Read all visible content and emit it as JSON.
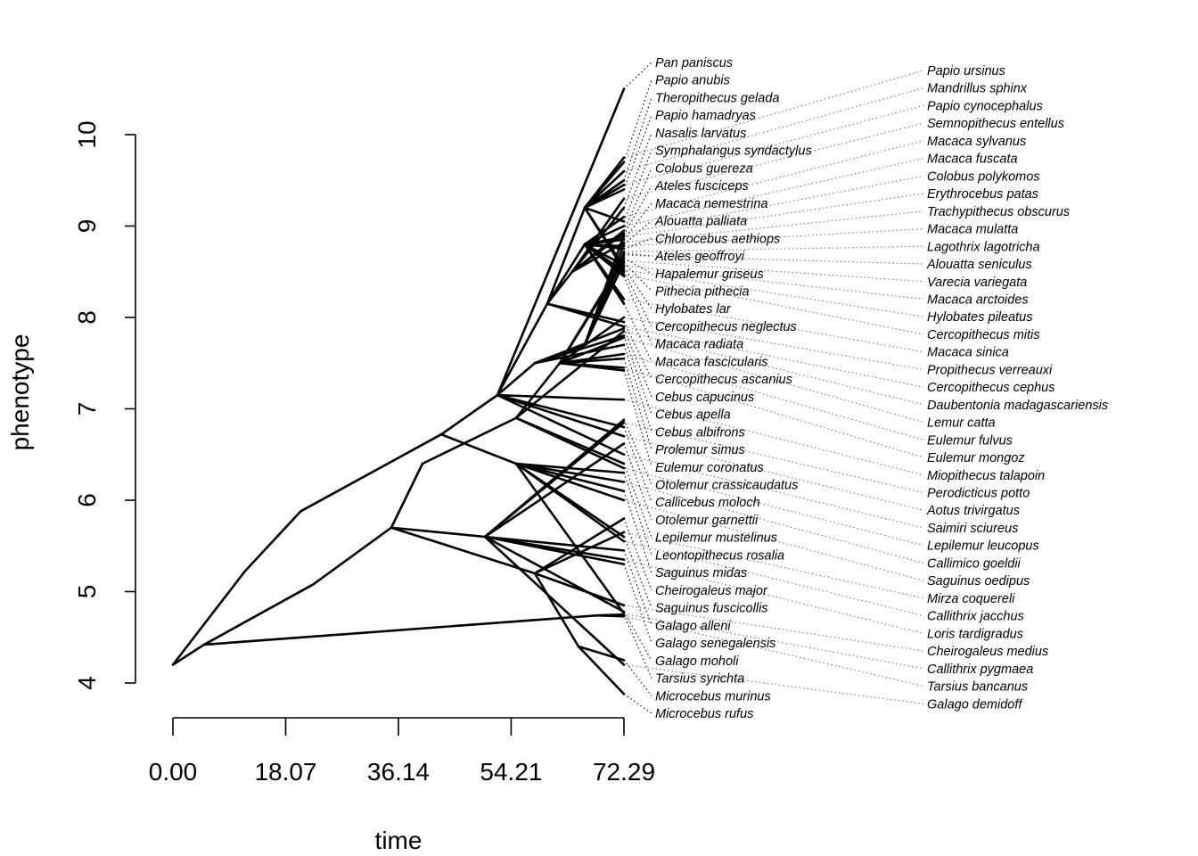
{
  "chart_data": {
    "type": "line",
    "subtype": "phenogram",
    "xlabel": "time",
    "ylabel": "phenotype",
    "xlim": [
      0,
      72.29
    ],
    "ylim": [
      4,
      10
    ],
    "x_ticks": [
      "0.00",
      "18.07",
      "36.14",
      "54.21",
      "72.29"
    ],
    "x_tick_values": [
      0,
      18.07,
      36.14,
      54.21,
      72.29
    ],
    "y_ticks": [
      "4",
      "5",
      "6",
      "7",
      "8",
      "9",
      "10"
    ],
    "y_tick_values": [
      4,
      5,
      6,
      7,
      8,
      9,
      10
    ],
    "grid": false,
    "root": [
      0,
      4.2
    ],
    "nodes": {
      "T": [
        5,
        4.42
      ],
      "T1": [
        68,
        4.74
      ],
      "H": [
        11.5,
        5.22
      ],
      "H1": [
        20.5,
        5.88
      ],
      "H2": [
        43,
        6.72
      ],
      "H3": [
        52,
        7.15
      ],
      "CA": [
        60,
        8.15
      ],
      "CA1": [
        66,
        8.8
      ],
      "CA2": [
        64,
        8.5
      ],
      "AP": [
        66,
        9.2
      ],
      "PL": [
        58,
        7.5
      ],
      "PL1": [
        66,
        7.7
      ],
      "PL2": [
        55,
        6.4
      ],
      "ST": [
        22.5,
        5.08
      ],
      "ST1": [
        35,
        5.7
      ],
      "LE": [
        40,
        6.4
      ],
      "LE1": [
        55,
        6.9
      ],
      "LE2": [
        62,
        7.5
      ],
      "LO": [
        50,
        5.6
      ],
      "CH": [
        58,
        5.2
      ],
      "CH1": [
        65,
        4.4
      ]
    },
    "tips": [
      {
        "name": "Pan paniscus",
        "value": 10.5,
        "path": [
          "H",
          "H1",
          "H2",
          "H3"
        ]
      },
      {
        "name": "Papio ursinus",
        "value": 9.75,
        "path": [
          "H",
          "H1",
          "H2",
          "H3",
          "CA",
          "AP"
        ]
      },
      {
        "name": "Papio anubis",
        "value": 9.7,
        "path": [
          "H",
          "H1",
          "H2",
          "H3",
          "CA",
          "AP"
        ]
      },
      {
        "name": "Mandrillus sphinx",
        "value": 9.6,
        "path": [
          "H",
          "H1",
          "H2",
          "H3",
          "CA",
          "AP"
        ]
      },
      {
        "name": "Theropithecus gelada",
        "value": 9.5,
        "path": [
          "H",
          "H1",
          "H2",
          "H3",
          "CA",
          "AP"
        ]
      },
      {
        "name": "Papio cynocephalus",
        "value": 9.45,
        "path": [
          "H",
          "H1",
          "H2",
          "H3",
          "CA",
          "AP"
        ]
      },
      {
        "name": "Papio hamadryas",
        "value": 9.4,
        "path": [
          "H",
          "H1",
          "H2",
          "H3",
          "CA",
          "AP"
        ]
      },
      {
        "name": "Semnopithecus entellus",
        "value": 9.3,
        "path": [
          "H",
          "H1",
          "H2",
          "H3",
          "CA",
          "CA2"
        ]
      },
      {
        "name": "Nasalis larvatus",
        "value": 9.2,
        "path": [
          "H",
          "H1",
          "H2",
          "H3",
          "CA",
          "CA2"
        ]
      },
      {
        "name": "Macaca sylvanus",
        "value": 9.1,
        "path": [
          "H",
          "H1",
          "H2",
          "H3",
          "CA",
          "CA1"
        ]
      },
      {
        "name": "Symphalangus syndactylus",
        "value": 9.05,
        "path": [
          "H",
          "H1",
          "H2",
          "H3",
          "CA",
          "AP"
        ]
      },
      {
        "name": "Macaca fuscata",
        "value": 9.0,
        "path": [
          "H",
          "H1",
          "H2",
          "H3",
          "CA",
          "CA1"
        ]
      },
      {
        "name": "Colobus guereza",
        "value": 8.95,
        "path": [
          "H",
          "H1",
          "H2",
          "H3",
          "CA",
          "CA2"
        ]
      },
      {
        "name": "Colobus polykomos",
        "value": 8.92,
        "path": [
          "H",
          "H1",
          "H2",
          "H3",
          "CA",
          "CA2"
        ]
      },
      {
        "name": "Ateles fusciceps",
        "value": 8.9,
        "path": [
          "H",
          "H1",
          "H2",
          "H3",
          "PL",
          "PL1"
        ]
      },
      {
        "name": "Erythrocebus patas",
        "value": 8.88,
        "path": [
          "H",
          "H1",
          "H2",
          "H3",
          "CA",
          "CA1"
        ]
      },
      {
        "name": "Macaca nemestrina",
        "value": 8.85,
        "path": [
          "H",
          "H1",
          "H2",
          "H3",
          "CA",
          "CA1"
        ]
      },
      {
        "name": "Trachypithecus obscurus",
        "value": 8.82,
        "path": [
          "H",
          "H1",
          "H2",
          "H3",
          "CA",
          "CA2"
        ]
      },
      {
        "name": "Alouatta palliata",
        "value": 8.8,
        "path": [
          "H",
          "H1",
          "H2",
          "H3",
          "PL",
          "PL1"
        ]
      },
      {
        "name": "Macaca mulatta",
        "value": 8.78,
        "path": [
          "H",
          "H1",
          "H2",
          "H3",
          "CA",
          "CA1"
        ]
      },
      {
        "name": "Chlorocebus aethiops",
        "value": 8.75,
        "path": [
          "H",
          "H1",
          "H2",
          "H3",
          "CA",
          "CA1"
        ]
      },
      {
        "name": "Lagothrix lagotricha",
        "value": 8.72,
        "path": [
          "H",
          "H1",
          "H2",
          "H3",
          "PL",
          "PL1"
        ]
      },
      {
        "name": "Ateles geoffroyi",
        "value": 8.7,
        "path": [
          "H",
          "H1",
          "H2",
          "H3",
          "PL",
          "PL1"
        ]
      },
      {
        "name": "Alouatta seniculus",
        "value": 8.68,
        "path": [
          "H",
          "H1",
          "H2",
          "H3",
          "PL",
          "PL1"
        ]
      },
      {
        "name": "Hapalemur griseus",
        "value": 8.65,
        "path": [
          "T",
          "ST",
          "ST1",
          "LE",
          "LE1",
          "LE2"
        ]
      },
      {
        "name": "Varecia variegata",
        "value": 8.62,
        "path": [
          "T",
          "ST",
          "ST1",
          "LE",
          "LE1",
          "LE2"
        ]
      },
      {
        "name": "Pithecia pithecia",
        "value": 8.6,
        "path": [
          "H",
          "H1",
          "H2",
          "H3",
          "PL",
          "PL1"
        ]
      },
      {
        "name": "Macaca arctoides",
        "value": 8.57,
        "path": [
          "H",
          "H1",
          "H2",
          "H3",
          "CA",
          "CA1"
        ]
      },
      {
        "name": "Hylobates lar",
        "value": 8.55,
        "path": [
          "H",
          "H1",
          "H2",
          "H3",
          "CA",
          "AP"
        ]
      },
      {
        "name": "Hylobates pileatus",
        "value": 8.52,
        "path": [
          "H",
          "H1",
          "H2",
          "H3",
          "CA",
          "AP"
        ]
      },
      {
        "name": "Cercopithecus neglectus",
        "value": 8.5,
        "path": [
          "H",
          "H1",
          "H2",
          "H3",
          "CA",
          "CA1"
        ]
      },
      {
        "name": "Cercopithecus mitis",
        "value": 8.47,
        "path": [
          "H",
          "H1",
          "H2",
          "H3",
          "CA",
          "CA1"
        ]
      },
      {
        "name": "Macaca radiata",
        "value": 8.45,
        "path": [
          "H",
          "H1",
          "H2",
          "H3",
          "CA",
          "CA1"
        ]
      },
      {
        "name": "Macaca sinica",
        "value": 8.2,
        "path": [
          "H",
          "H1",
          "H2",
          "H3",
          "CA",
          "CA1"
        ]
      },
      {
        "name": "Macaca fascicularis",
        "value": 8.15,
        "path": [
          "H",
          "H1",
          "H2",
          "H3",
          "CA",
          "CA1"
        ]
      },
      {
        "name": "Propithecus verreauxi",
        "value": 8.0,
        "path": [
          "T",
          "ST",
          "ST1",
          "LE",
          "LE1",
          "LE2"
        ]
      },
      {
        "name": "Cercopithecus ascanius",
        "value": 7.95,
        "path": [
          "H",
          "H1",
          "H2",
          "H3",
          "CA"
        ]
      },
      {
        "name": "Cercopithecus cephus",
        "value": 7.9,
        "path": [
          "H",
          "H1",
          "H2",
          "H3",
          "CA"
        ]
      },
      {
        "name": "Cebus capucinus",
        "value": 7.88,
        "path": [
          "H",
          "H1",
          "H2",
          "H3",
          "PL"
        ]
      },
      {
        "name": "Daubentonia madagascariensis",
        "value": 7.85,
        "path": [
          "T",
          "ST",
          "ST1",
          "LE",
          "LE1"
        ]
      },
      {
        "name": "Cebus apella",
        "value": 7.8,
        "path": [
          "H",
          "H1",
          "H2",
          "H3",
          "PL"
        ]
      },
      {
        "name": "Lemur catta",
        "value": 7.78,
        "path": [
          "T",
          "ST",
          "ST1",
          "LE",
          "LE1",
          "LE2"
        ]
      },
      {
        "name": "Cebus albifrons",
        "value": 7.7,
        "path": [
          "H",
          "H1",
          "H2",
          "H3",
          "PL"
        ]
      },
      {
        "name": "Eulemur fulvus",
        "value": 7.6,
        "path": [
          "T",
          "ST",
          "ST1",
          "LE",
          "LE1",
          "LE2"
        ]
      },
      {
        "name": "Prolemur simus",
        "value": 7.55,
        "path": [
          "T",
          "ST",
          "ST1",
          "LE",
          "LE1",
          "LE2"
        ]
      },
      {
        "name": "Eulemur mongoz",
        "value": 7.45,
        "path": [
          "T",
          "ST",
          "ST1",
          "LE",
          "LE1",
          "LE2"
        ]
      },
      {
        "name": "Eulemur coronatus",
        "value": 7.42,
        "path": [
          "T",
          "ST",
          "ST1",
          "LE",
          "LE1",
          "LE2"
        ]
      },
      {
        "name": "Miopithecus talapoin",
        "value": 7.1,
        "path": [
          "H",
          "H1",
          "H2",
          "H3"
        ]
      },
      {
        "name": "Otolemur crassicaudatus",
        "value": 6.88,
        "path": [
          "T",
          "ST",
          "ST1",
          "LO"
        ]
      },
      {
        "name": "Perodicticus potto",
        "value": 6.85,
        "path": [
          "T",
          "ST",
          "ST1",
          "LO"
        ]
      },
      {
        "name": "Callicebus moloch",
        "value": 6.8,
        "path": [
          "H",
          "H1",
          "H2",
          "H3"
        ]
      },
      {
        "name": "Aotus trivirgatus",
        "value": 6.7,
        "path": [
          "H",
          "H1",
          "H2",
          "H3"
        ]
      },
      {
        "name": "Otolemur garnettii",
        "value": 6.62,
        "path": [
          "T",
          "ST",
          "ST1",
          "LO"
        ]
      },
      {
        "name": "Saimiri sciureus",
        "value": 6.5,
        "path": [
          "H",
          "H1",
          "H2",
          "H3"
        ]
      },
      {
        "name": "Lepilemur mustelinus",
        "value": 6.4,
        "path": [
          "T",
          "ST",
          "ST1",
          "LE",
          "LE1"
        ]
      },
      {
        "name": "Lepilemur leucopus",
        "value": 6.35,
        "path": [
          "T",
          "ST",
          "ST1",
          "LE",
          "LE1"
        ]
      },
      {
        "name": "Leontopithecus rosalia",
        "value": 6.3,
        "path": [
          "H",
          "H1",
          "H2",
          "PL2"
        ]
      },
      {
        "name": "Callimico goeldii",
        "value": 6.2,
        "path": [
          "H",
          "H1",
          "H2",
          "PL2"
        ]
      },
      {
        "name": "Saguinus midas",
        "value": 6.1,
        "path": [
          "H",
          "H1",
          "H2",
          "PL2"
        ]
      },
      {
        "name": "Saguinus oedipus",
        "value": 6.0,
        "path": [
          "H",
          "H1",
          "H2",
          "PL2"
        ]
      },
      {
        "name": "Cheirogaleus major",
        "value": 5.8,
        "path": [
          "T",
          "ST",
          "ST1",
          "CH"
        ]
      },
      {
        "name": "Mirza coquereli",
        "value": 5.65,
        "path": [
          "T",
          "ST",
          "ST1",
          "CH"
        ]
      },
      {
        "name": "Saguinus fuscicollis",
        "value": 5.6,
        "path": [
          "H",
          "H1",
          "H2",
          "PL2"
        ]
      },
      {
        "name": "Callithrix jacchus",
        "value": 5.55,
        "path": [
          "H",
          "H1",
          "H2",
          "PL2"
        ]
      },
      {
        "name": "Galago alleni",
        "value": 5.45,
        "path": [
          "T",
          "ST",
          "ST1",
          "LO"
        ]
      },
      {
        "name": "Loris tardigradus",
        "value": 5.35,
        "path": [
          "T",
          "ST",
          "ST1",
          "LO"
        ]
      },
      {
        "name": "Galago senegalensis",
        "value": 5.3,
        "path": [
          "T",
          "ST",
          "ST1",
          "LO"
        ]
      },
      {
        "name": "Cheirogaleus medius",
        "value": 4.85,
        "path": [
          "T",
          "ST",
          "ST1",
          "CH"
        ]
      },
      {
        "name": "Galago moholi",
        "value": 4.78,
        "path": [
          "T",
          "ST",
          "ST1",
          "LO"
        ]
      },
      {
        "name": "Callithrix pygmaea",
        "value": 4.76,
        "path": [
          "H",
          "H1",
          "H2",
          "PL2"
        ]
      },
      {
        "name": "Tarsius syrichta",
        "value": 4.75,
        "path": [
          "T",
          "T1"
        ]
      },
      {
        "name": "Tarsius bancanus",
        "value": 4.73,
        "path": [
          "T",
          "T1"
        ]
      },
      {
        "name": "Microcebus murinus",
        "value": 4.25,
        "path": [
          "T",
          "ST",
          "ST1",
          "CH",
          "CH1"
        ]
      },
      {
        "name": "Galago demidoff",
        "value": 4.2,
        "path": [
          "T",
          "ST",
          "ST1",
          "LO"
        ]
      },
      {
        "name": "Microcebus rufus",
        "value": 3.88,
        "path": [
          "T",
          "ST",
          "ST1",
          "CH",
          "CH1"
        ]
      }
    ]
  }
}
